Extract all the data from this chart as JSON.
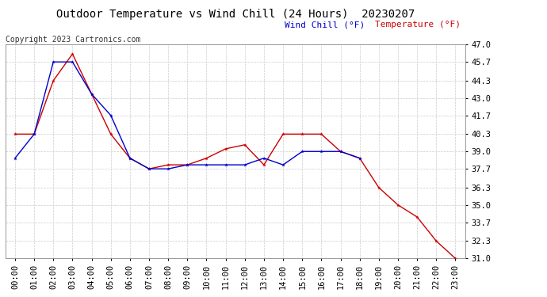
{
  "title": "Outdoor Temperature vs Wind Chill (24 Hours)  20230207",
  "copyright": "Copyright 2023 Cartronics.com",
  "legend_wind_chill": "Wind Chill (°F)",
  "legend_temperature": "Temperature (°F)",
  "x_labels": [
    "00:00",
    "01:00",
    "02:00",
    "03:00",
    "04:00",
    "05:00",
    "06:00",
    "07:00",
    "08:00",
    "09:00",
    "10:00",
    "11:00",
    "12:00",
    "13:00",
    "14:00",
    "15:00",
    "16:00",
    "17:00",
    "18:00",
    "19:00",
    "20:00",
    "21:00",
    "22:00",
    "23:00"
  ],
  "temperature": [
    40.3,
    40.3,
    44.3,
    46.3,
    43.3,
    40.3,
    38.5,
    37.7,
    38.0,
    38.0,
    38.5,
    39.2,
    39.5,
    38.0,
    40.3,
    40.3,
    40.3,
    39.0,
    38.5,
    36.3,
    35.0,
    34.1,
    32.3,
    31.0
  ],
  "wind_chill": [
    38.5,
    40.3,
    45.7,
    45.7,
    43.3,
    41.7,
    38.5,
    37.7,
    37.7,
    38.0,
    38.0,
    38.0,
    38.0,
    38.5,
    38.0,
    39.0,
    39.0,
    39.0,
    38.5,
    null,
    null,
    null,
    null,
    null
  ],
  "y_ticks": [
    31.0,
    32.3,
    33.7,
    35.0,
    36.3,
    37.7,
    39.0,
    40.3,
    41.7,
    43.0,
    44.3,
    45.7,
    47.0
  ],
  "y_min": 31.0,
  "y_max": 47.0,
  "temp_color": "#cc0000",
  "wind_color": "#0000cc",
  "background_color": "#ffffff",
  "grid_color": "#cccccc",
  "title_fontsize": 10,
  "tick_fontsize": 7.5,
  "copyright_fontsize": 7,
  "legend_fontsize": 8
}
